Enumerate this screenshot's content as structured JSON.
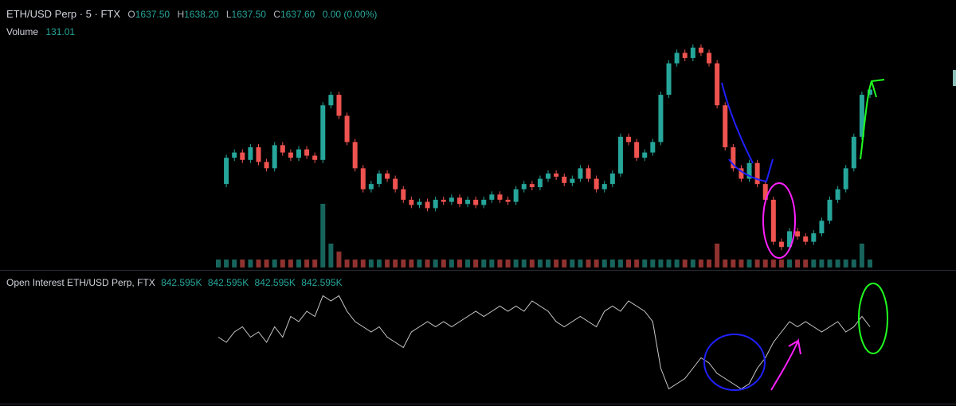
{
  "header": {
    "symbol": "ETH/USD Perp · 5 · FTX",
    "open_label": "O",
    "open": "1637.50",
    "high_label": "H",
    "high": "1638.20",
    "low_label": "L",
    "low": "1637.50",
    "close_label": "C",
    "close": "1637.60",
    "change": "0.00 (0.00%)"
  },
  "volume_legend": {
    "label": "Volume",
    "value": "131.01"
  },
  "oi_legend": {
    "label": "Open Interest ETH/USD Perp, FTX",
    "values": [
      "842.595K",
      "842.595K",
      "842.595K",
      "842.595K"
    ]
  },
  "colors": {
    "up": "#26a69a",
    "down": "#ef5350",
    "oi_line": "#c8c8c8",
    "blue_annotation": "#2020ff",
    "magenta_annotation": "#ff20ff",
    "green_annotation": "#20ff20"
  },
  "chart_data": [
    {
      "type": "line",
      "series": [
        {
          "values": [
            1575,
            1600,
            1605,
            1598,
            1610,
            1596,
            1590,
            1612,
            1605,
            1600,
            1608,
            1602,
            1598,
            1650,
            1660,
            1640,
            1615,
            1590,
            1570,
            1575,
            1585,
            1580,
            1570,
            1560,
            1555,
            1558,
            1552,
            1560,
            1558,
            1562,
            1556,
            1560,
            1555,
            1560,
            1565,
            1560,
            1558,
            1570,
            1575,
            1572,
            1580,
            1585,
            1582,
            1576,
            1580,
            1590,
            1580,
            1570,
            1575,
            1585,
            1620,
            1615,
            1600,
            1605,
            1615,
            1660,
            1690,
            1700,
            1695,
            1705,
            1700,
            1690,
            1650,
            1610,
            1590,
            1580,
            1595,
            1575,
            1560,
            1520,
            1515,
            1530,
            1525,
            1520,
            1528,
            1540,
            1560,
            1570,
            1590,
            1620,
            1660,
            1665
          ]
        }
      ]
    },
    {
      "type": "bar",
      "series": [
        {
          "values": [
            1,
            1,
            1,
            1,
            1,
            1,
            1,
            1,
            1,
            1,
            1,
            1,
            1,
            8,
            3,
            2,
            1,
            1,
            1,
            1,
            1,
            1,
            1,
            1,
            1,
            1,
            1,
            1,
            1,
            1,
            1,
            1,
            1,
            1,
            1,
            1,
            1,
            1,
            1,
            1,
            1,
            1,
            1,
            1,
            1,
            1,
            1,
            1,
            1,
            1,
            1,
            1,
            1,
            1,
            1,
            1,
            1,
            1,
            1,
            1,
            1,
            1,
            3,
            1,
            1,
            1,
            1,
            1,
            1,
            1,
            1,
            1,
            1,
            1,
            1,
            1,
            1,
            1,
            1,
            1,
            3,
            1
          ]
        }
      ]
    },
    {
      "type": "line",
      "series": [
        {
          "values": [
            842.2,
            842.15,
            842.25,
            842.3,
            842.2,
            842.25,
            842.15,
            842.3,
            842.2,
            842.4,
            842.35,
            842.45,
            842.4,
            842.6,
            842.55,
            842.6,
            842.45,
            842.35,
            842.3,
            842.25,
            842.3,
            842.2,
            842.15,
            842.1,
            842.25,
            842.3,
            842.35,
            842.3,
            842.35,
            842.3,
            842.35,
            842.4,
            842.45,
            842.4,
            842.45,
            842.5,
            842.45,
            842.5,
            842.45,
            842.55,
            842.5,
            842.45,
            842.35,
            842.3,
            842.35,
            842.4,
            842.35,
            842.3,
            842.45,
            842.5,
            842.45,
            842.55,
            842.5,
            842.45,
            842.35,
            841.9,
            841.7,
            841.75,
            841.8,
            841.9,
            842.0,
            841.95,
            841.85,
            841.8,
            841.75,
            841.7,
            841.75,
            841.9,
            842.0,
            842.15,
            842.25,
            842.35,
            842.3,
            842.35,
            842.3,
            842.25,
            842.3,
            842.35,
            842.25,
            842.3,
            842.4,
            842.3
          ]
        }
      ]
    }
  ]
}
